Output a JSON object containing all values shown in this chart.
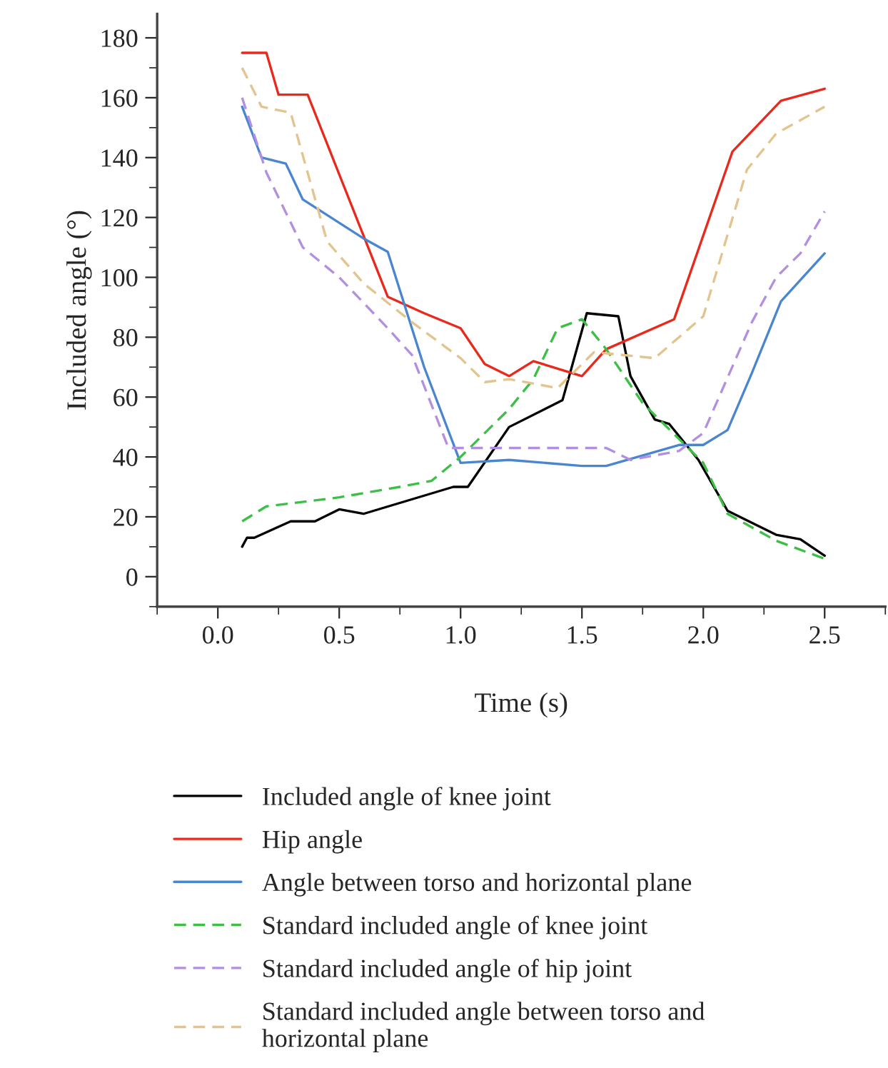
{
  "chart_data": {
    "type": "line",
    "xlabel": "Time (s)",
    "ylabel": "Included angle (°)",
    "xlim": [
      -0.25,
      2.75
    ],
    "ylim": [
      -10,
      188
    ],
    "xticks": [
      {
        "value": 0,
        "label": "0.0"
      },
      0.5,
      {
        "value": 1,
        "label": "1.0"
      },
      1.5,
      {
        "value": 2,
        "label": "2.0"
      },
      2.5
    ],
    "yticks": [
      0,
      20,
      40,
      60,
      80,
      100,
      120,
      140,
      160,
      180
    ],
    "grid": false,
    "legend": "bottom",
    "series": [
      {
        "name": "Included angle of knee joint",
        "color": "#000000",
        "line_style": "solid",
        "x": [
          0.1,
          0.12,
          0.15,
          0.3,
          0.4,
          0.5,
          0.6,
          0.97,
          1.03,
          1.2,
          1.42,
          1.52,
          1.65,
          1.7,
          1.8,
          1.86,
          1.98,
          2.1,
          2.3,
          2.4,
          2.5
        ],
        "values": [
          10,
          13,
          13,
          18.5,
          18.5,
          22.5,
          21,
          30,
          30,
          50,
          59,
          88,
          87,
          67,
          52.5,
          51,
          39,
          22,
          14,
          12.5,
          7
        ]
      },
      {
        "name": "Hip angle",
        "color": "#e8291c",
        "line_style": "solid",
        "x": [
          0.1,
          0.2,
          0.25,
          0.37,
          0.7,
          0.85,
          1.0,
          1.1,
          1.2,
          1.3,
          1.5,
          1.6,
          1.88,
          2.12,
          2.32,
          2.5
        ],
        "values": [
          175,
          175,
          161,
          161,
          93.5,
          88,
          83,
          71,
          67,
          72,
          67,
          76,
          86,
          142,
          159,
          163
        ]
      },
      {
        "name": "Angle between torso and horizontal plane",
        "color": "#4a86d0",
        "line_style": "solid",
        "x": [
          0.1,
          0.18,
          0.28,
          0.35,
          0.6,
          0.7,
          0.85,
          1.0,
          1.2,
          1.5,
          1.6,
          1.9,
          2.0,
          2.1,
          2.2,
          2.3,
          2.32,
          2.5
        ],
        "values": [
          157,
          140,
          138,
          126,
          113,
          108.5,
          70,
          38,
          39,
          37,
          37,
          44,
          44,
          49,
          68,
          88,
          92,
          108
        ]
      },
      {
        "name": "Standard included angle of knee joint",
        "color": "#3dbf46",
        "line_style": "dashed",
        "x": [
          0.1,
          0.2,
          0.5,
          0.75,
          0.88,
          1.0,
          1.2,
          1.3,
          1.4,
          1.5,
          1.6,
          1.75,
          1.9,
          2.0,
          2.1,
          2.3,
          2.5
        ],
        "values": [
          18.5,
          23.5,
          26.5,
          30,
          32,
          40,
          56,
          66,
          83,
          86,
          76,
          58,
          46,
          38,
          21,
          12,
          6
        ]
      },
      {
        "name": "Standard included angle of hip joint",
        "color": "#b28fe0",
        "line_style": "dashed",
        "x": [
          0.1,
          0.2,
          0.35,
          0.5,
          0.7,
          0.8,
          0.95,
          1.2,
          1.6,
          1.7,
          1.9,
          2.0,
          2.2,
          2.3,
          2.4,
          2.5
        ],
        "values": [
          160,
          135,
          110,
          100,
          83,
          74,
          43,
          43,
          43,
          39,
          42,
          48,
          85,
          100,
          108,
          122
        ]
      },
      {
        "name": "Standard included angle between torso and horizontal plane",
        "color": "#e3c48f",
        "line_style": "dashed",
        "x": [
          0.1,
          0.18,
          0.3,
          0.45,
          0.6,
          0.8,
          1.0,
          1.1,
          1.2,
          1.4,
          1.55,
          1.8,
          2.0,
          2.18,
          2.3,
          2.5
        ],
        "values": [
          170,
          157,
          155,
          112,
          98,
          85,
          73,
          65,
          66,
          63,
          75,
          73,
          87,
          136,
          148,
          157
        ]
      }
    ]
  }
}
